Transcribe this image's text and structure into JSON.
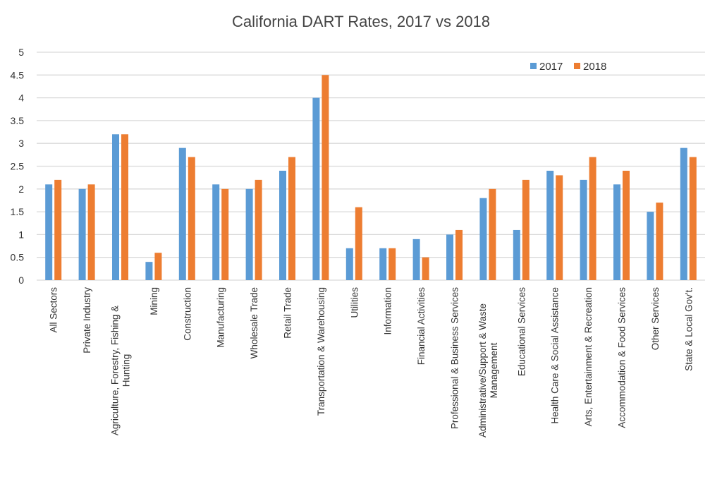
{
  "chart_data": {
    "type": "bar",
    "title": "California DART Rates, 2017 vs 2018",
    "xlabel": "",
    "ylabel": "",
    "ylim": [
      0,
      5
    ],
    "yticks": [
      "0",
      "0.5",
      "1",
      "1.5",
      "2",
      "2.5",
      "3",
      "3.5",
      "4",
      "4.5",
      "5"
    ],
    "grid": true,
    "legend_position": "top-right",
    "categories": [
      [
        "All Sectors"
      ],
      [
        "Private Industry"
      ],
      [
        "Agriculture, Forestry, Fishing &",
        "Hunting"
      ],
      [
        "Mining"
      ],
      [
        "Construction"
      ],
      [
        "Manufacturing"
      ],
      [
        "Wholesale Trade"
      ],
      [
        "Retail Trade"
      ],
      [
        "Transportation   & Warehousing"
      ],
      [
        "Utilities"
      ],
      [
        "Information"
      ],
      [
        "Financial Activities"
      ],
      [
        "Professional & Business Services"
      ],
      [
        "Administrative/Support &   Waste",
        "Management"
      ],
      [
        "Educational Services"
      ],
      [
        "Health Care & Social Assistance"
      ],
      [
        "Arts, Entertainment & Recreation"
      ],
      [
        "Accommodation  &  Food Services"
      ],
      [
        "Other Services"
      ],
      [
        "State & Local Gov't."
      ]
    ],
    "series": [
      {
        "name": "2017",
        "color": "#5b9bd5",
        "values": [
          2.1,
          2.0,
          3.2,
          0.4,
          2.9,
          2.1,
          2.0,
          2.4,
          4.0,
          0.7,
          0.7,
          0.9,
          1.0,
          1.8,
          1.1,
          2.4,
          2.2,
          2.1,
          1.5,
          2.9
        ]
      },
      {
        "name": "2018",
        "color": "#ed7d31",
        "values": [
          2.2,
          2.1,
          3.2,
          0.6,
          2.7,
          2.0,
          2.2,
          2.7,
          4.5,
          1.6,
          0.7,
          0.5,
          1.1,
          2.0,
          2.2,
          2.3,
          2.7,
          2.4,
          1.7,
          2.7
        ]
      }
    ]
  }
}
